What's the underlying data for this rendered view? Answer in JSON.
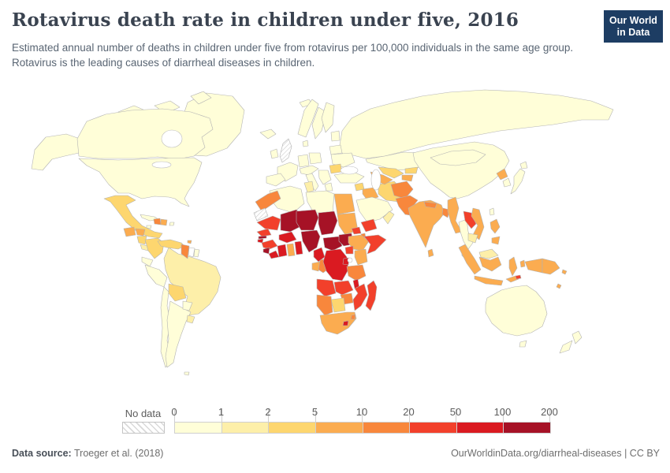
{
  "header": {
    "title": "Rotavirus death rate in children under five, 2016",
    "subtitle": "Estimated annual number of deaths in children under five from rotavirus per 100,000 individuals in the same age group. Rotavirus is the leading causes of diarrheal diseases in children."
  },
  "logo": {
    "line1": "Our World",
    "line2": "in Data",
    "bg_color": "#1d3d63",
    "bar_color": "#dc3e32"
  },
  "legend": {
    "no_data_label": "No data"
  },
  "footer": {
    "datasource_label": "Data source:",
    "datasource_value": " Troeger et al. (2018)",
    "credit": "OurWorldinData.org/diarrheal-diseases | CC BY"
  },
  "chart_data": {
    "type": "heatmap",
    "subtype": "world-choropleth",
    "title": "Rotavirus death rate in children under five, 2016",
    "unit": "deaths per 100,000 individuals in the same age group",
    "year": 2016,
    "legend_ticks": [
      "0",
      "1",
      "2",
      "5",
      "10",
      "20",
      "50",
      "100",
      "200"
    ],
    "bins": [
      {
        "range": "0-1",
        "color": "#fffed8"
      },
      {
        "range": "1-2",
        "color": "#fdefa9"
      },
      {
        "range": "2-5",
        "color": "#fdd66f"
      },
      {
        "range": "5-10",
        "color": "#fbac50"
      },
      {
        "range": "10-20",
        "color": "#f8873c"
      },
      {
        "range": "20-50",
        "color": "#f2402b"
      },
      {
        "range": "50-100",
        "color": "#da1a21"
      },
      {
        "range": "100-200",
        "color": "#a61226"
      }
    ],
    "no_data_color": "hatch",
    "no_data_countries": [
      "United Kingdom",
      "Western Sahara"
    ],
    "country_bins": {
      "canada": 0,
      "usa": 0,
      "alaska": 0,
      "greenland": 0,
      "arctic-islands-1": 0,
      "arctic-islands-2": 0,
      "arctic-islands-3": 0,
      "mexico": 2,
      "guatemala": 3,
      "honduras": 3,
      "nicaragua": 2,
      "costa-rica-panama": 1,
      "cuba": 0,
      "jamaica": 0,
      "haiti": 4,
      "dominican-republic": 3,
      "puerto-rico": 0,
      "trinidad-and-tobago": 3,
      "colombia": 2,
      "venezuela": 2,
      "guyana": 4,
      "suriname": "white",
      "french-guiana": 0,
      "ecuador": 0,
      "peru": 0,
      "brazil": 1,
      "bolivia": 2,
      "paraguay": 0,
      "chile": 0,
      "argentina": 0,
      "uruguay": 1,
      "falkland-islands": 0,
      "iceland": 0,
      "ireland": 0,
      "united-kingdom": "nodata",
      "norway": 0,
      "sweden": 0,
      "finland": 0,
      "denmark": 0,
      "baltic-states": 0,
      "france": 0,
      "germany": 0,
      "poland": 0,
      "central-europe": 0,
      "spain-portugal": 0,
      "italy": 0,
      "balkans": 0,
      "greece": 0,
      "romania": 2,
      "ukraine": 0,
      "belarus": 0,
      "russia": 0,
      "svalbard": 0,
      "kazakhstan": 0,
      "uzbekistan": 2,
      "turkmenistan": 3,
      "kyrgyzstan": 2,
      "tajikistan": 3,
      "turkey": 0,
      "syria": 2,
      "iraq": 3,
      "iran": 2,
      "saudi-arabia": 0,
      "yemen": 5,
      "oman": 1,
      "afghanistan": 4,
      "pakistan": 4,
      "india": 3,
      "nepal": 4,
      "bangladesh": 4,
      "sri-lanka": 3,
      "myanmar": 3,
      "thailand": 0,
      "laos": 5,
      "vietnam": 3,
      "cambodia": 1,
      "malaysia-peninsula": 1,
      "malaysia-borneo": 1,
      "china": 0,
      "mongolia": 0,
      "north-korea": 3,
      "south-korea": 0,
      "japan": 0,
      "japan-hokkaido": 0,
      "taiwan": 0,
      "philippines-luzon": 3,
      "philippines-mindanao": 3,
      "sumatra": 3,
      "java": 3,
      "kalimantan": 3,
      "sulawesi": 3,
      "moluccas": 3,
      "west-timor": 3,
      "east-timor": 5,
      "papua": 3,
      "papua-new-guinea": 3,
      "solomon-islands": 3,
      "vanuatu": 3,
      "australia": 0,
      "tasmania": 0,
      "new-zealand-north": 0,
      "new-zealand-south": 0,
      "morocco": 4,
      "western-sahara": "nodata",
      "algeria": 0,
      "tunisia": 1,
      "libya": 0,
      "egypt": 3,
      "mauritania": 5,
      "mali": 7,
      "niger": 7,
      "chad": 7,
      "sudan": 3,
      "senegal": 5,
      "gambia": 7,
      "guinea-bissau": 6,
      "guinea": 5,
      "sierra-leone": 7,
      "liberia": 6,
      "cote-divoire": 6,
      "ghana": 3,
      "togo-benin": 6,
      "burkina-faso": 6,
      "nigeria": 7,
      "cameroon": 6,
      "central-african-republic": 7,
      "south-sudan": 7,
      "eritrea": 5,
      "djibouti": 4,
      "ethiopia": 3,
      "somalia": 5,
      "gabon": 3,
      "congo": 4,
      "dr-congo": 6,
      "uganda": 5,
      "kenya": 3,
      "rwanda-burundi": 6,
      "tanzania": 4,
      "angola": 5,
      "zambia": 5,
      "malawi": 6,
      "mozambique": 5,
      "zimbabwe": 4,
      "botswana": 2,
      "namibia": 4,
      "south-africa": 3,
      "lesotho": 6,
      "swaziland": 4,
      "madagascar": 5
    }
  }
}
